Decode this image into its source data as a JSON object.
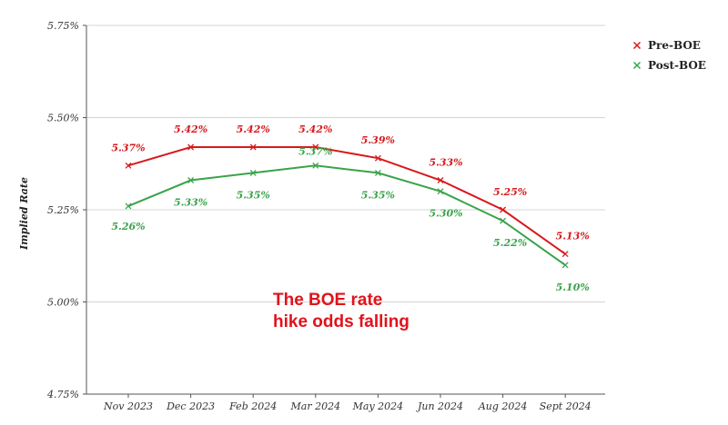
{
  "chart_data": {
    "type": "line",
    "categories": [
      "Nov 2023",
      "Dec 2023",
      "Feb 2024",
      "Mar 2024",
      "May 2024",
      "Jun 2024",
      "Aug 2024",
      "Sept 2024"
    ],
    "series": [
      {
        "name": "Pre-BOE",
        "color": "#d7191c",
        "values": [
          5.37,
          5.42,
          5.42,
          5.42,
          5.39,
          5.33,
          5.25,
          5.13
        ],
        "labels": [
          "5.37%",
          "5.42%",
          "5.42%",
          "5.42%",
          "5.39%",
          "5.33%",
          "5.25%",
          "5.13%"
        ]
      },
      {
        "name": "Post-BOE",
        "color": "#3aa34a",
        "values": [
          5.26,
          5.33,
          5.35,
          5.37,
          5.35,
          5.3,
          5.22,
          5.1
        ],
        "labels": [
          "5.26%",
          "5.33%",
          "5.35%",
          "5.37%",
          "5.35%",
          "5.30%",
          "5.22%",
          "5.10%"
        ]
      }
    ],
    "ylabel": "Implied Rate",
    "xlabel": "",
    "ylim": [
      4.75,
      5.75
    ],
    "yticks": [
      "4.75%",
      "5.00%",
      "5.25%",
      "5.50%",
      "5.75%"
    ],
    "ytick_values": [
      4.75,
      5.0,
      5.25,
      5.5,
      5.75
    ],
    "grid": true,
    "legend": "top-right",
    "annotation": {
      "lines": [
        "The BOE rate",
        "hike odds falling"
      ],
      "color": "#e0131b"
    }
  }
}
